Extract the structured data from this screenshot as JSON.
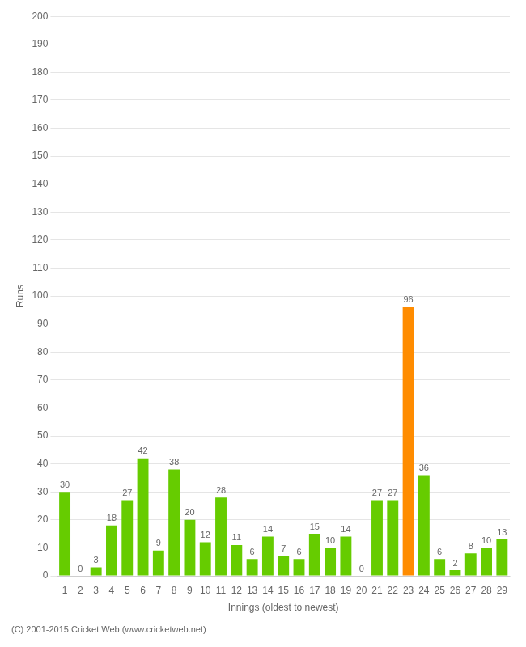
{
  "chart_data": {
    "type": "bar",
    "x_label": "Innings (oldest to newest)",
    "y_label": "Runs",
    "categories": [
      1,
      2,
      3,
      4,
      5,
      6,
      7,
      8,
      9,
      10,
      11,
      12,
      13,
      14,
      15,
      16,
      17,
      18,
      19,
      20,
      21,
      22,
      23,
      24,
      25,
      26,
      27,
      28,
      29
    ],
    "values": [
      30,
      0,
      3,
      18,
      27,
      42,
      9,
      38,
      20,
      12,
      28,
      11,
      6,
      14,
      7,
      6,
      15,
      10,
      14,
      0,
      27,
      27,
      96,
      36,
      6,
      2,
      8,
      10,
      13
    ],
    "colors": [
      "#66cc00",
      "#66cc00",
      "#66cc00",
      "#66cc00",
      "#66cc00",
      "#66cc00",
      "#66cc00",
      "#66cc00",
      "#66cc00",
      "#66cc00",
      "#66cc00",
      "#66cc00",
      "#66cc00",
      "#66cc00",
      "#66cc00",
      "#66cc00",
      "#66cc00",
      "#66cc00",
      "#66cc00",
      "#66cc00",
      "#66cc00",
      "#66cc00",
      "#ff8c00",
      "#66cc00",
      "#66cc00",
      "#66cc00",
      "#66cc00",
      "#66cc00",
      "#66cc00"
    ],
    "ylim": [
      0,
      200
    ],
    "yticks": [
      0,
      10,
      20,
      30,
      40,
      50,
      60,
      70,
      80,
      90,
      100,
      110,
      120,
      130,
      140,
      150,
      160,
      170,
      180,
      190,
      200
    ],
    "grid": "y",
    "data_labels": true,
    "annotations": [
      "(C) 2001-2015 Cricket Web (www.cricketweb.net)"
    ]
  }
}
